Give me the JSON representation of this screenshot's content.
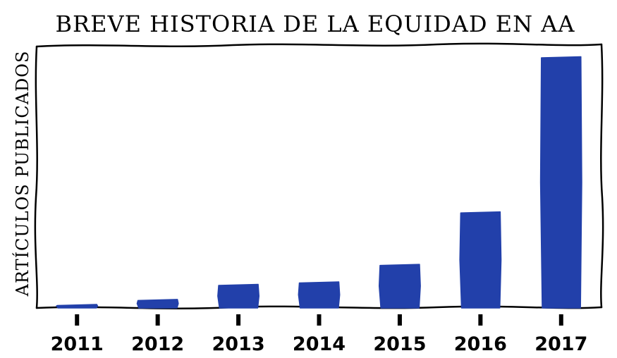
{
  "chart_data": {
    "type": "bar",
    "title": "BREVE HISTORIA DE LA EQUIDAD EN AA",
    "xlabel": "",
    "ylabel": "ARTÍCULOS PUBLICADOS",
    "categories": [
      "2011",
      "2012",
      "2013",
      "2014",
      "2015",
      "2016",
      "2017"
    ],
    "values": [
      1,
      3,
      9,
      10,
      17,
      38,
      100
    ],
    "ylim": [
      0,
      100
    ],
    "bar_color": "#2240aa",
    "grid": false,
    "legend": "none",
    "style": "hand-drawn"
  }
}
